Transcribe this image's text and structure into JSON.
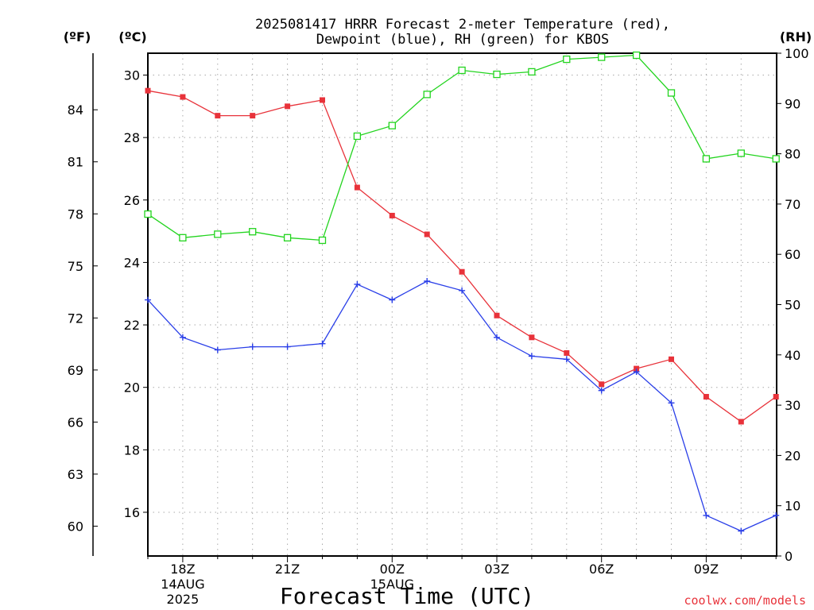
{
  "chart_data": {
    "type": "line",
    "title": [
      "2025081417 HRRR Forecast 2-meter Temperature (red),",
      "Dewpoint (blue), RH (green) for KBOS"
    ],
    "xlabel": "Forecast Time (UTC)",
    "credit": "coolwx.com/models",
    "x_hours": [
      17,
      18,
      19,
      20,
      21,
      22,
      23,
      24,
      25,
      26,
      27,
      28,
      29,
      30,
      31,
      32,
      33,
      34,
      35
    ],
    "x_ticks": [
      {
        "hour": 18,
        "lines": [
          "18Z",
          "14AUG",
          "2025"
        ]
      },
      {
        "hour": 21,
        "lines": [
          "21Z"
        ]
      },
      {
        "hour": 24,
        "lines": [
          "00Z",
          "15AUG"
        ]
      },
      {
        "hour": 27,
        "lines": [
          "03Z"
        ]
      },
      {
        "hour": 30,
        "lines": [
          "06Z"
        ]
      },
      {
        "hour": 33,
        "lines": [
          "09Z"
        ]
      }
    ],
    "axes": {
      "celsius": {
        "label": "(ºC)",
        "range": [
          14.6,
          30.7
        ],
        "ticks": [
          16,
          18,
          20,
          22,
          24,
          26,
          28,
          30
        ]
      },
      "fahrenheit": {
        "label": "(ºF)",
        "ticks": [
          60,
          63,
          66,
          69,
          72,
          75,
          78,
          81,
          84
        ]
      },
      "rh": {
        "label": "(RH)",
        "range": [
          0,
          100
        ],
        "ticks": [
          0,
          10,
          20,
          30,
          40,
          50,
          60,
          70,
          80,
          90,
          100
        ]
      }
    },
    "grid": true,
    "series": [
      {
        "key": "temperature",
        "color": "#e8323a",
        "axis": "celsius",
        "marker": "filled-square",
        "values": [
          29.5,
          29.3,
          28.7,
          28.7,
          29.0,
          29.2,
          26.4,
          25.5,
          24.9,
          23.7,
          22.3,
          21.6,
          21.1,
          20.1,
          20.6,
          20.9,
          19.7,
          18.9,
          19.7
        ]
      },
      {
        "key": "dewpoint",
        "color": "#2a3fe8",
        "axis": "celsius",
        "marker": "plus",
        "values": [
          22.8,
          21.6,
          21.2,
          21.3,
          21.3,
          21.4,
          23.3,
          22.8,
          23.4,
          23.1,
          21.6,
          21.0,
          20.9,
          19.9,
          20.5,
          19.5,
          15.9,
          15.4,
          15.9
        ]
      },
      {
        "key": "rh",
        "color": "#22d41e",
        "axis": "rh",
        "marker": "open-square",
        "values": [
          68,
          63.3,
          64,
          64.5,
          63.3,
          62.8,
          83.5,
          85.6,
          91.8,
          96.6,
          95.8,
          96.3,
          98.8,
          99.2,
          99.6,
          92.1,
          79,
          80.1,
          79
        ]
      }
    ]
  }
}
